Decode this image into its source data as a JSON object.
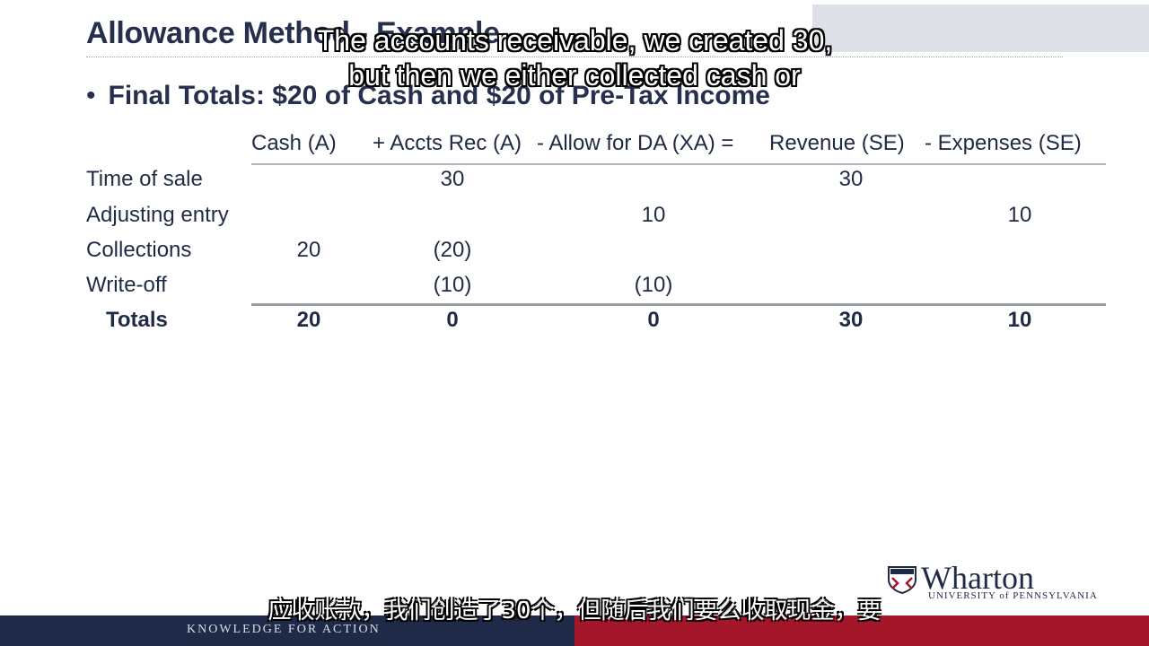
{
  "slide": {
    "title": "Allowance Method - Example",
    "bullet": "Final Totals: $20 of Cash and $20 of Pre-Tax Income"
  },
  "captions": {
    "english_line1": "The accounts receivable, we created 30,",
    "english_line2": "but then we either collected cash or",
    "chinese": "应收账款，我们创造了30个，但随后我们要么收取现金，要"
  },
  "table": {
    "headers": [
      "Cash (A)",
      "+ Accts Rec (A)",
      "- Allow for DA (XA) =",
      "Revenue (SE)",
      "- Expenses (SE)"
    ],
    "rows": [
      {
        "label": "Time of sale",
        "cells": [
          "",
          "30",
          "",
          "30",
          ""
        ]
      },
      {
        "label": "Adjusting entry",
        "cells": [
          "",
          "",
          "10",
          "",
          "10"
        ]
      },
      {
        "label": "Collections",
        "cells": [
          "20",
          "(20)",
          "",
          "",
          ""
        ]
      },
      {
        "label": "Write-off",
        "cells": [
          "",
          "(10)",
          "(10)",
          "",
          ""
        ]
      },
      {
        "label": "Totals",
        "cells": [
          "20",
          "0",
          "0",
          "30",
          "10"
        ]
      }
    ]
  },
  "logo": {
    "name": "Wharton",
    "subtitle": "UNIVERSITY of PENNSYLVANIA"
  },
  "footer": {
    "tagline": "KNOWLEDGE FOR ACTION"
  },
  "colors": {
    "navy": "#1f2a49",
    "red": "#a4162a",
    "text": "#1f2a44"
  }
}
